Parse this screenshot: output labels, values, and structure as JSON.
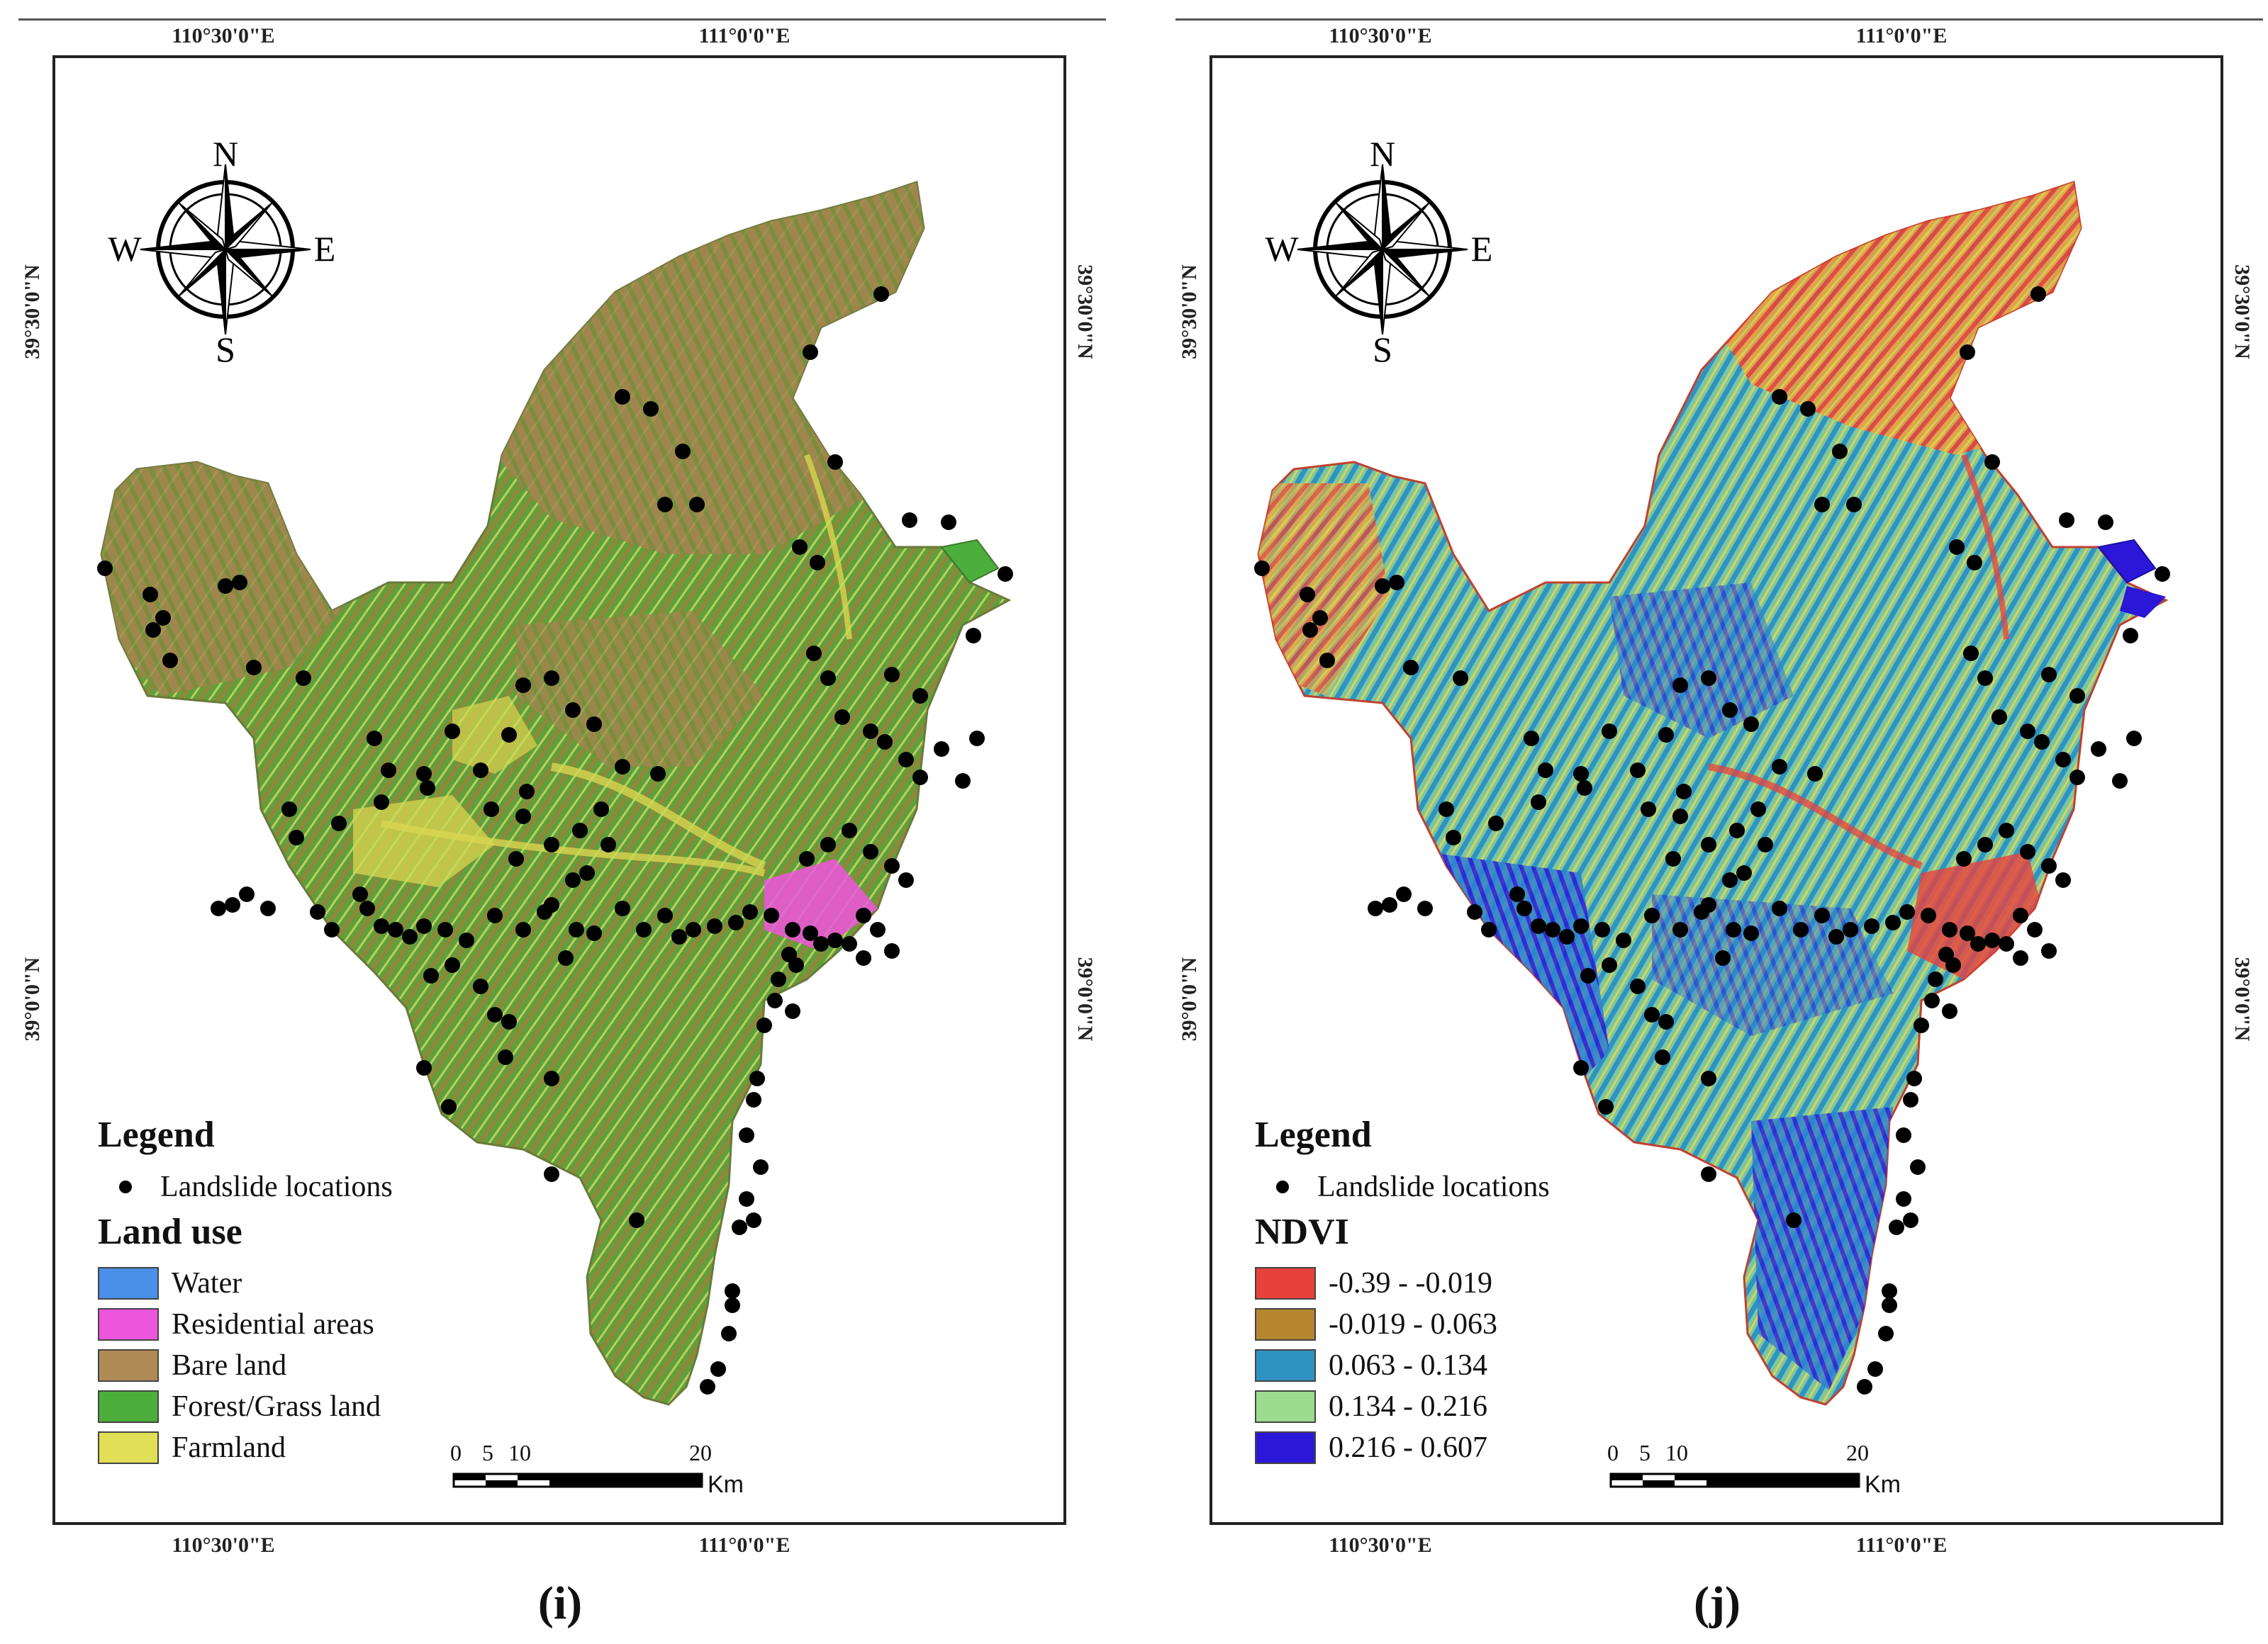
{
  "panels": [
    {
      "id": "i",
      "caption": "(i)",
      "lon_labels": [
        "110°30'0\"E",
        "111°0'0\"E"
      ],
      "lat_labels": [
        "39°30'0\"N",
        "39°0'0\"N"
      ],
      "compass": {
        "n": "N",
        "s": "S",
        "e": "E",
        "w": "W"
      },
      "legend_title": "Legend",
      "point_label": "Landslide locations",
      "class_title": "Land use",
      "classes": [
        {
          "label": "Water",
          "color": "#4a8fe8"
        },
        {
          "label": "Residential areas",
          "color": "#ee55dd"
        },
        {
          "label": "Bare land",
          "color": "#b08a55"
        },
        {
          "label": "Forest/Grass land",
          "color": "#4caf3c"
        },
        {
          "label": "Farmland",
          "color": "#e0df55"
        }
      ],
      "scale_ticks": [
        "0",
        "5",
        "10",
        "20"
      ],
      "scale_unit": "Km"
    },
    {
      "id": "j",
      "caption": "(j)",
      "lon_labels": [
        "110°30'0\"E",
        "111°0'0\"E"
      ],
      "lat_labels": [
        "39°30'0\"N",
        "39°0'0\"N"
      ],
      "compass": {
        "n": "N",
        "s": "S",
        "e": "E",
        "w": "W"
      },
      "legend_title": "Legend",
      "point_label": "Landslide locations",
      "class_title": "NDVI",
      "classes": [
        {
          "label": "-0.39 - -0.019",
          "color": "#e8413c"
        },
        {
          "label": "-0.019 - 0.063",
          "color": "#b5862e"
        },
        {
          "label": "0.063 - 0.134",
          "color": "#2f93c2"
        },
        {
          "label": "0.134 - 0.216",
          "color": "#9bdc8e"
        },
        {
          "label": "0.216 - 0.607",
          "color": "#2a17d8"
        }
      ],
      "scale_ticks": [
        "0",
        "5",
        "10",
        "20"
      ],
      "scale_unit": "Km"
    }
  ]
}
